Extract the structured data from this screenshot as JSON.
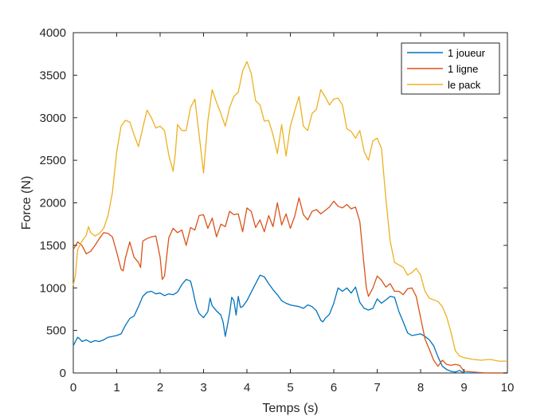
{
  "chart_data": {
    "type": "line",
    "xlabel": "Temps (s)",
    "ylabel": "Force (N)",
    "xlim": [
      0,
      10
    ],
    "ylim": [
      0,
      4000
    ],
    "xticks": [
      0,
      1,
      2,
      3,
      4,
      5,
      6,
      7,
      8,
      9,
      10
    ],
    "yticks": [
      0,
      500,
      1000,
      1500,
      2000,
      2500,
      3000,
      3500,
      4000
    ],
    "grid": false,
    "legend_position": "top-right",
    "series": [
      {
        "name": "1 joueur",
        "color": "#0072BD",
        "points": [
          [
            0.0,
            320
          ],
          [
            0.05,
            370
          ],
          [
            0.1,
            420
          ],
          [
            0.15,
            400
          ],
          [
            0.2,
            370
          ],
          [
            0.3,
            390
          ],
          [
            0.4,
            360
          ],
          [
            0.5,
            380
          ],
          [
            0.6,
            370
          ],
          [
            0.7,
            390
          ],
          [
            0.8,
            420
          ],
          [
            0.9,
            430
          ],
          [
            1.0,
            440
          ],
          [
            1.1,
            460
          ],
          [
            1.2,
            560
          ],
          [
            1.3,
            640
          ],
          [
            1.4,
            670
          ],
          [
            1.5,
            780
          ],
          [
            1.6,
            900
          ],
          [
            1.7,
            950
          ],
          [
            1.8,
            960
          ],
          [
            1.9,
            930
          ],
          [
            2.0,
            940
          ],
          [
            2.1,
            910
          ],
          [
            2.2,
            930
          ],
          [
            2.3,
            920
          ],
          [
            2.4,
            950
          ],
          [
            2.5,
            1040
          ],
          [
            2.6,
            1100
          ],
          [
            2.7,
            1080
          ],
          [
            2.75,
            980
          ],
          [
            2.8,
            860
          ],
          [
            2.85,
            760
          ],
          [
            2.9,
            700
          ],
          [
            3.0,
            650
          ],
          [
            3.1,
            720
          ],
          [
            3.15,
            880
          ],
          [
            3.2,
            790
          ],
          [
            3.3,
            730
          ],
          [
            3.4,
            680
          ],
          [
            3.45,
            600
          ],
          [
            3.5,
            430
          ],
          [
            3.55,
            560
          ],
          [
            3.6,
            700
          ],
          [
            3.65,
            890
          ],
          [
            3.7,
            850
          ],
          [
            3.75,
            680
          ],
          [
            3.8,
            900
          ],
          [
            3.85,
            770
          ],
          [
            3.9,
            780
          ],
          [
            4.0,
            850
          ],
          [
            4.1,
            950
          ],
          [
            4.2,
            1050
          ],
          [
            4.3,
            1150
          ],
          [
            4.4,
            1130
          ],
          [
            4.5,
            1050
          ],
          [
            4.6,
            980
          ],
          [
            4.7,
            920
          ],
          [
            4.8,
            850
          ],
          [
            4.9,
            820
          ],
          [
            5.0,
            800
          ],
          [
            5.1,
            790
          ],
          [
            5.2,
            780
          ],
          [
            5.3,
            760
          ],
          [
            5.4,
            800
          ],
          [
            5.5,
            780
          ],
          [
            5.6,
            730
          ],
          [
            5.7,
            620
          ],
          [
            5.75,
            600
          ],
          [
            5.8,
            640
          ],
          [
            5.9,
            690
          ],
          [
            6.0,
            820
          ],
          [
            6.1,
            1000
          ],
          [
            6.2,
            960
          ],
          [
            6.3,
            1000
          ],
          [
            6.4,
            940
          ],
          [
            6.5,
            1010
          ],
          [
            6.6,
            830
          ],
          [
            6.7,
            760
          ],
          [
            6.8,
            740
          ],
          [
            6.9,
            760
          ],
          [
            7.0,
            870
          ],
          [
            7.1,
            820
          ],
          [
            7.2,
            860
          ],
          [
            7.3,
            900
          ],
          [
            7.4,
            890
          ],
          [
            7.5,
            720
          ],
          [
            7.6,
            600
          ],
          [
            7.7,
            470
          ],
          [
            7.8,
            440
          ],
          [
            7.9,
            450
          ],
          [
            8.0,
            460
          ],
          [
            8.1,
            430
          ],
          [
            8.2,
            390
          ],
          [
            8.3,
            320
          ],
          [
            8.4,
            190
          ],
          [
            8.5,
            80
          ],
          [
            8.6,
            40
          ],
          [
            8.7,
            20
          ],
          [
            8.8,
            10
          ],
          [
            8.9,
            30
          ],
          [
            9.0,
            0
          ],
          [
            9.5,
            0
          ],
          [
            10.0,
            0
          ]
        ]
      },
      {
        "name": "1 ligne",
        "color": "#D95319",
        "points": [
          [
            0.0,
            1450
          ],
          [
            0.1,
            1540
          ],
          [
            0.2,
            1500
          ],
          [
            0.3,
            1400
          ],
          [
            0.4,
            1430
          ],
          [
            0.5,
            1500
          ],
          [
            0.6,
            1580
          ],
          [
            0.7,
            1650
          ],
          [
            0.8,
            1640
          ],
          [
            0.9,
            1600
          ],
          [
            1.0,
            1420
          ],
          [
            1.1,
            1220
          ],
          [
            1.15,
            1200
          ],
          [
            1.2,
            1350
          ],
          [
            1.3,
            1540
          ],
          [
            1.4,
            1360
          ],
          [
            1.5,
            1300
          ],
          [
            1.55,
            1240
          ],
          [
            1.6,
            1550
          ],
          [
            1.7,
            1580
          ],
          [
            1.8,
            1600
          ],
          [
            1.9,
            1610
          ],
          [
            2.0,
            1360
          ],
          [
            2.05,
            1100
          ],
          [
            2.1,
            1140
          ],
          [
            2.2,
            1590
          ],
          [
            2.3,
            1700
          ],
          [
            2.4,
            1650
          ],
          [
            2.5,
            1680
          ],
          [
            2.6,
            1500
          ],
          [
            2.7,
            1710
          ],
          [
            2.8,
            1680
          ],
          [
            2.9,
            1850
          ],
          [
            3.0,
            1860
          ],
          [
            3.1,
            1700
          ],
          [
            3.2,
            1820
          ],
          [
            3.3,
            1600
          ],
          [
            3.4,
            1750
          ],
          [
            3.5,
            1720
          ],
          [
            3.6,
            1900
          ],
          [
            3.7,
            1860
          ],
          [
            3.8,
            1870
          ],
          [
            3.9,
            1660
          ],
          [
            4.0,
            1940
          ],
          [
            4.1,
            1900
          ],
          [
            4.2,
            1710
          ],
          [
            4.3,
            1800
          ],
          [
            4.4,
            1660
          ],
          [
            4.5,
            1850
          ],
          [
            4.6,
            1720
          ],
          [
            4.7,
            2000
          ],
          [
            4.8,
            1740
          ],
          [
            4.9,
            1870
          ],
          [
            5.0,
            1700
          ],
          [
            5.1,
            1840
          ],
          [
            5.2,
            2060
          ],
          [
            5.3,
            1860
          ],
          [
            5.4,
            1800
          ],
          [
            5.5,
            1900
          ],
          [
            5.6,
            1920
          ],
          [
            5.7,
            1870
          ],
          [
            5.8,
            1910
          ],
          [
            5.9,
            1950
          ],
          [
            6.0,
            2020
          ],
          [
            6.1,
            1960
          ],
          [
            6.2,
            1940
          ],
          [
            6.3,
            1980
          ],
          [
            6.4,
            1930
          ],
          [
            6.5,
            1950
          ],
          [
            6.6,
            1780
          ],
          [
            6.7,
            1250
          ],
          [
            6.75,
            1000
          ],
          [
            6.8,
            900
          ],
          [
            6.9,
            1000
          ],
          [
            7.0,
            1140
          ],
          [
            7.1,
            1090
          ],
          [
            7.2,
            1010
          ],
          [
            7.3,
            1050
          ],
          [
            7.4,
            960
          ],
          [
            7.5,
            960
          ],
          [
            7.6,
            920
          ],
          [
            7.7,
            990
          ],
          [
            7.8,
            1000
          ],
          [
            7.9,
            900
          ],
          [
            8.0,
            650
          ],
          [
            8.1,
            400
          ],
          [
            8.2,
            280
          ],
          [
            8.3,
            150
          ],
          [
            8.4,
            80
          ],
          [
            8.5,
            150
          ],
          [
            8.6,
            100
          ],
          [
            8.7,
            90
          ],
          [
            8.8,
            100
          ],
          [
            8.9,
            90
          ],
          [
            9.0,
            20
          ],
          [
            9.5,
            0
          ],
          [
            10.0,
            0
          ]
        ]
      },
      {
        "name": "le pack",
        "color": "#EDB120",
        "points": [
          [
            0.0,
            1030
          ],
          [
            0.05,
            1150
          ],
          [
            0.1,
            1450
          ],
          [
            0.2,
            1550
          ],
          [
            0.3,
            1620
          ],
          [
            0.35,
            1720
          ],
          [
            0.4,
            1650
          ],
          [
            0.5,
            1610
          ],
          [
            0.6,
            1640
          ],
          [
            0.7,
            1700
          ],
          [
            0.8,
            1850
          ],
          [
            0.9,
            2120
          ],
          [
            1.0,
            2600
          ],
          [
            1.1,
            2900
          ],
          [
            1.2,
            2970
          ],
          [
            1.3,
            2950
          ],
          [
            1.4,
            2800
          ],
          [
            1.5,
            2660
          ],
          [
            1.6,
            2880
          ],
          [
            1.7,
            3090
          ],
          [
            1.8,
            3000
          ],
          [
            1.9,
            2880
          ],
          [
            2.0,
            2900
          ],
          [
            2.1,
            2850
          ],
          [
            2.2,
            2560
          ],
          [
            2.3,
            2370
          ],
          [
            2.35,
            2580
          ],
          [
            2.4,
            2920
          ],
          [
            2.5,
            2850
          ],
          [
            2.6,
            2850
          ],
          [
            2.7,
            3120
          ],
          [
            2.8,
            3220
          ],
          [
            2.9,
            2800
          ],
          [
            3.0,
            2350
          ],
          [
            3.1,
            2960
          ],
          [
            3.2,
            3330
          ],
          [
            3.3,
            3180
          ],
          [
            3.4,
            3050
          ],
          [
            3.5,
            2900
          ],
          [
            3.6,
            3120
          ],
          [
            3.7,
            3250
          ],
          [
            3.8,
            3300
          ],
          [
            3.9,
            3550
          ],
          [
            4.0,
            3660
          ],
          [
            4.1,
            3520
          ],
          [
            4.2,
            3200
          ],
          [
            4.3,
            3150
          ],
          [
            4.4,
            2960
          ],
          [
            4.5,
            2970
          ],
          [
            4.6,
            2800
          ],
          [
            4.7,
            2580
          ],
          [
            4.8,
            2920
          ],
          [
            4.9,
            2550
          ],
          [
            5.0,
            2900
          ],
          [
            5.1,
            3080
          ],
          [
            5.2,
            3250
          ],
          [
            5.3,
            2900
          ],
          [
            5.4,
            2850
          ],
          [
            5.5,
            3050
          ],
          [
            5.6,
            3100
          ],
          [
            5.7,
            3330
          ],
          [
            5.8,
            3250
          ],
          [
            5.9,
            3150
          ],
          [
            6.0,
            3220
          ],
          [
            6.1,
            3230
          ],
          [
            6.2,
            3150
          ],
          [
            6.3,
            2870
          ],
          [
            6.4,
            2840
          ],
          [
            6.5,
            2760
          ],
          [
            6.6,
            2850
          ],
          [
            6.7,
            2600
          ],
          [
            6.8,
            2500
          ],
          [
            6.9,
            2730
          ],
          [
            7.0,
            2760
          ],
          [
            7.1,
            2640
          ],
          [
            7.2,
            2050
          ],
          [
            7.3,
            1550
          ],
          [
            7.4,
            1300
          ],
          [
            7.5,
            1270
          ],
          [
            7.6,
            1240
          ],
          [
            7.7,
            1150
          ],
          [
            7.8,
            1180
          ],
          [
            7.9,
            1230
          ],
          [
            8.0,
            1150
          ],
          [
            8.1,
            960
          ],
          [
            8.2,
            880
          ],
          [
            8.3,
            860
          ],
          [
            8.4,
            840
          ],
          [
            8.5,
            780
          ],
          [
            8.6,
            660
          ],
          [
            8.7,
            480
          ],
          [
            8.8,
            260
          ],
          [
            8.9,
            200
          ],
          [
            9.0,
            180
          ],
          [
            9.2,
            160
          ],
          [
            9.4,
            150
          ],
          [
            9.6,
            160
          ],
          [
            9.8,
            140
          ],
          [
            10.0,
            140
          ]
        ]
      }
    ]
  }
}
